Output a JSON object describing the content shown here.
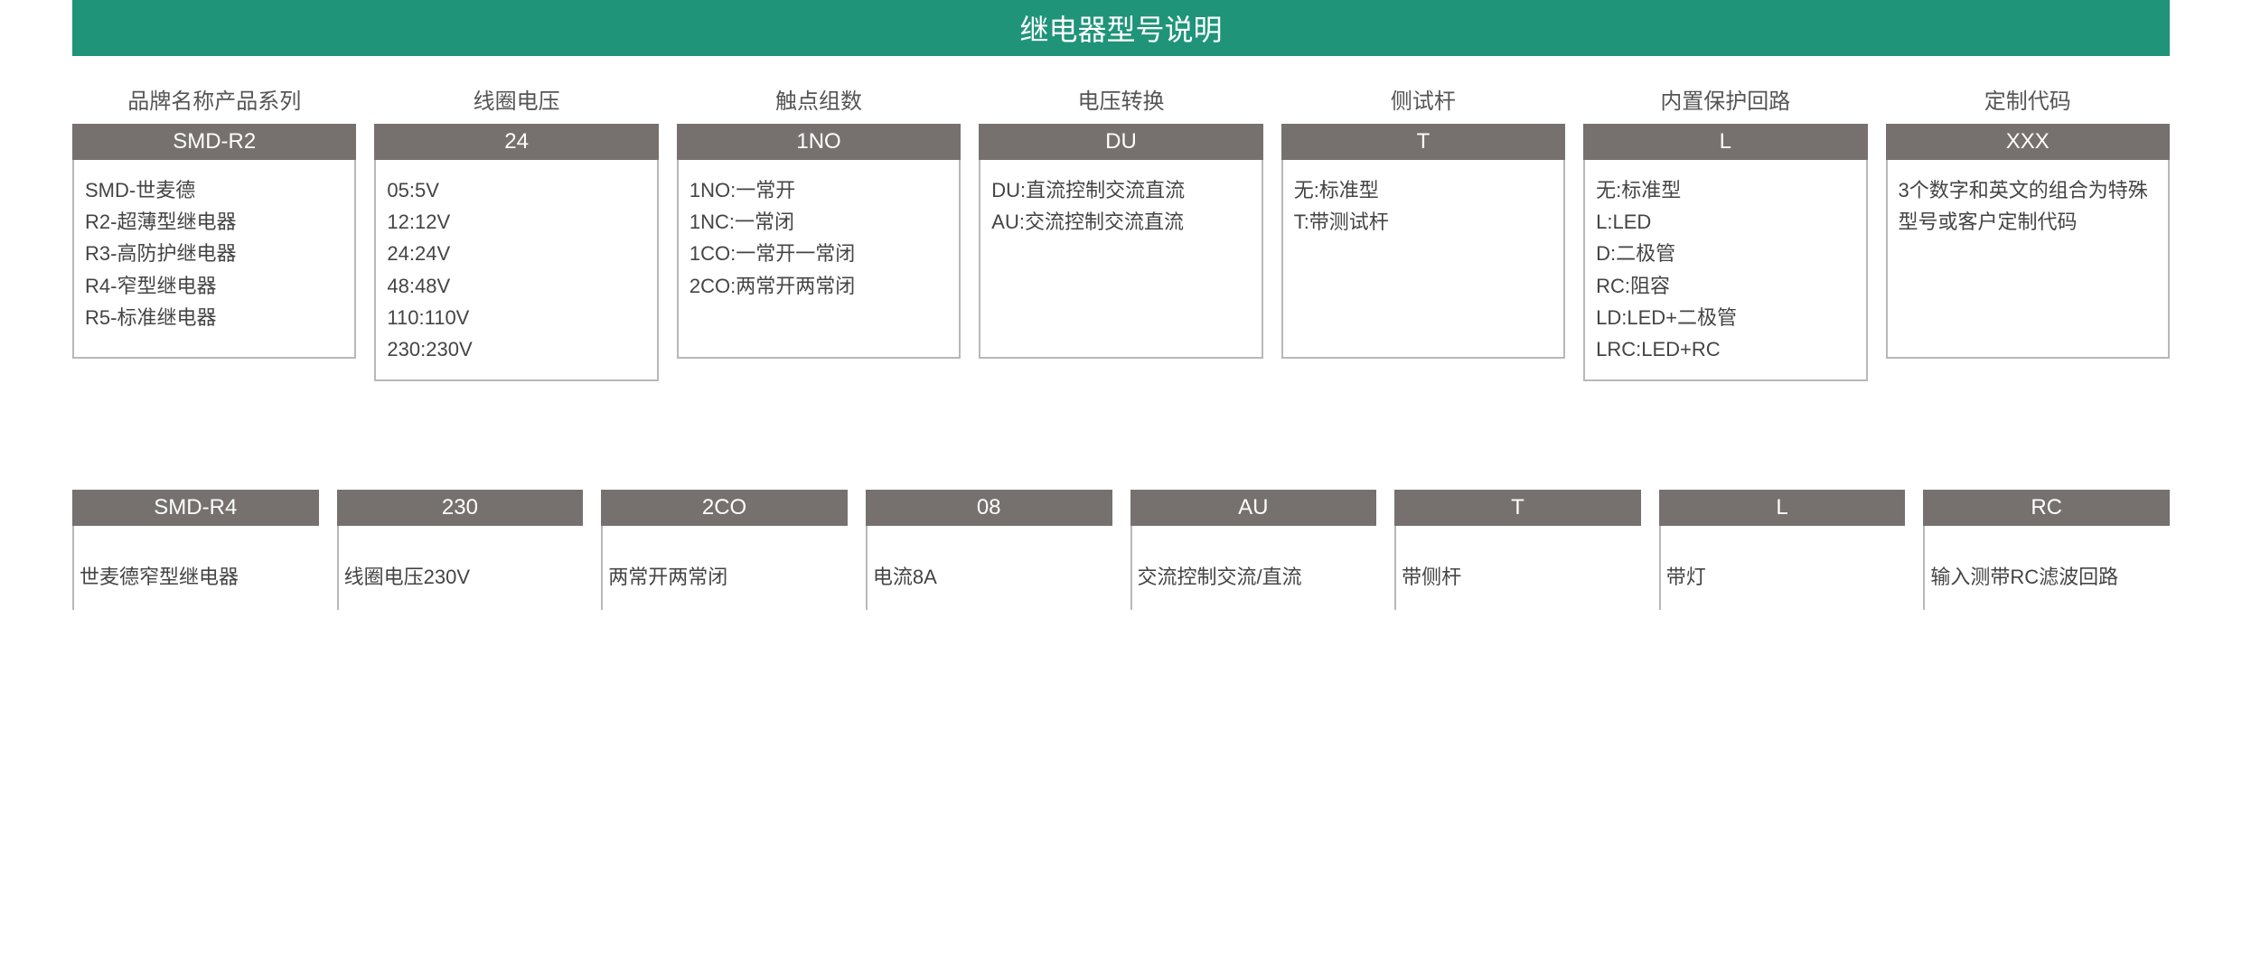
{
  "colors": {
    "title_bg": "#1f9479",
    "title_text": "#ffffff",
    "code_bg": "#76716e",
    "code_text": "#ffffff",
    "label_text": "#555555",
    "desc_text": "#444444",
    "border": "#b8b8b8",
    "background": "#ffffff"
  },
  "typography": {
    "title_fontsize": 32,
    "label_fontsize": 24,
    "code_fontsize": 24,
    "desc_fontsize": 22
  },
  "title": "继电器型号说明",
  "top_columns": [
    {
      "label": "品牌名称产品系列",
      "code": "SMD-R2",
      "lines": [
        "SMD-世麦德",
        "R2-超薄型继电器",
        "R3-高防护继电器",
        "R4-窄型继电器",
        "R5-标准继电器"
      ]
    },
    {
      "label": "线圈电压",
      "code": "24",
      "lines": [
        "05:5V",
        "12:12V",
        "24:24V",
        "48:48V",
        "110:110V",
        "230:230V"
      ]
    },
    {
      "label": "触点组数",
      "code": "1NO",
      "lines": [
        "1NO:一常开",
        "1NC:一常闭",
        "1CO:一常开一常闭",
        "2CO:两常开两常闭"
      ]
    },
    {
      "label": "电压转换",
      "code": "DU",
      "lines": [
        "DU:直流控制交流直流",
        "AU:交流控制交流直流"
      ]
    },
    {
      "label": "侧试杆",
      "code": "T",
      "lines": [
        "无:标准型",
        "T:带测试杆"
      ]
    },
    {
      "label": "内置保护回路",
      "code": "L",
      "lines": [
        "无:标准型",
        "L:LED",
        "D:二极管",
        "RC:阻容",
        "LD:LED+二极管",
        "LRC:LED+RC"
      ]
    },
    {
      "label": "定制代码",
      "code": "XXX",
      "lines": [
        "3个数字和英文的组合为特殊型号或客户定制代码"
      ]
    }
  ],
  "bottom_columns": [
    {
      "code": "SMD-R4",
      "desc": "世麦德窄型继电器"
    },
    {
      "code": "230",
      "desc": "线圈电压230V"
    },
    {
      "code": "2CO",
      "desc": "两常开两常闭"
    },
    {
      "code": "08",
      "desc": "电流8A"
    },
    {
      "code": "AU",
      "desc": "交流控制交流/直流"
    },
    {
      "code": "T",
      "desc": "带侧杆"
    },
    {
      "code": "L",
      "desc": "带灯"
    },
    {
      "code": "RC",
      "desc": "输入测带RC滤波回路"
    }
  ]
}
